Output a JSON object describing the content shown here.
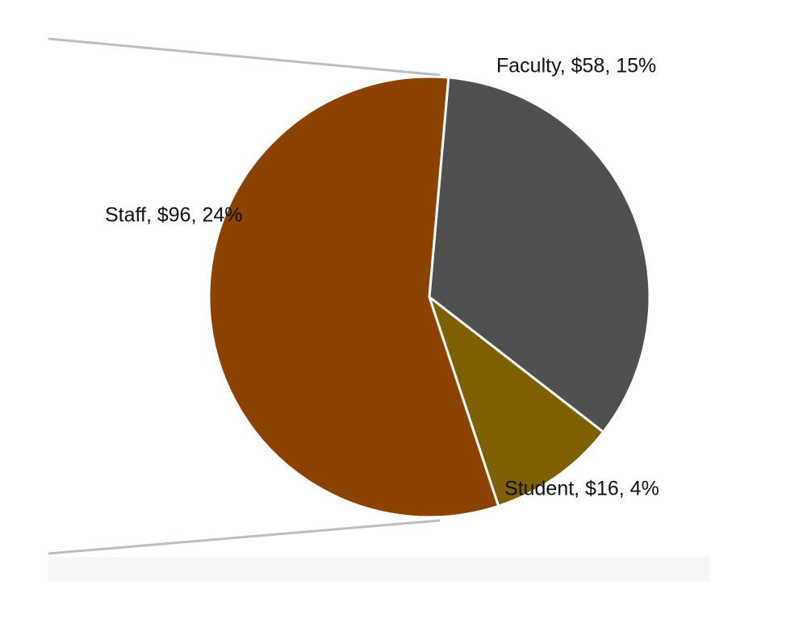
{
  "chart_data": {
    "type": "pie",
    "values": [
      58,
      16,
      96
    ],
    "value_labels": [
      "Faculty, $58, 15%",
      "Student, $16, 4%",
      "Staff, $96, 24%"
    ],
    "colors": [
      "#505050",
      "#7f6000",
      "#8c4200"
    ]
  }
}
